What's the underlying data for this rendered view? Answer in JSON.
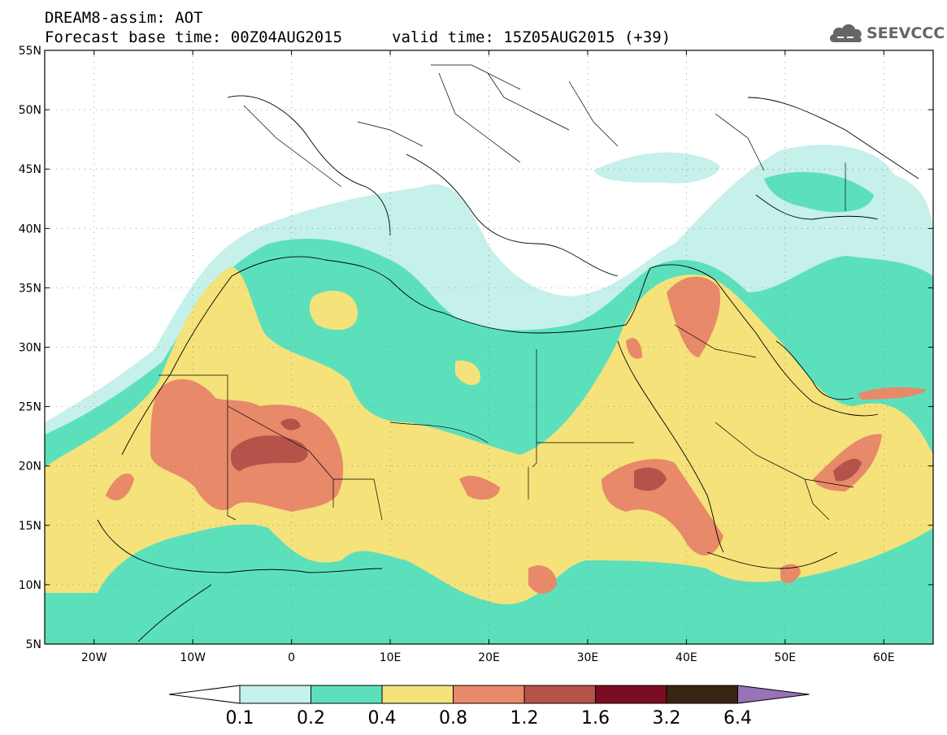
{
  "header": {
    "title": "DREAM8-assim: AOT",
    "base_time": "Forecast base time: 00Z04AUG2015",
    "valid_time": "valid time: 15Z05AUG2015 (+39)"
  },
  "logo": {
    "text": "SEEVCCC",
    "icon": "cloud-icon"
  },
  "map": {
    "lon_range": [
      -25,
      65
    ],
    "lat_range": [
      5,
      55
    ],
    "lat_ticks": [
      "55N",
      "50N",
      "45N",
      "40N",
      "35N",
      "30N",
      "25N",
      "20N",
      "15N",
      "10N",
      "5N"
    ],
    "lon_ticks": [
      "20W",
      "10W",
      "0",
      "10E",
      "20E",
      "30E",
      "40E",
      "50E",
      "60E"
    ]
  },
  "colorbar": {
    "labels": [
      "0.1",
      "0.2",
      "0.4",
      "0.8",
      "1.2",
      "1.6",
      "3.2",
      "6.4"
    ],
    "colors": [
      "#ffffff",
      "#c6f0ea",
      "#5ce0bc",
      "#f5e27a",
      "#e8896a",
      "#b5534a",
      "#7a0d22",
      "#3c2413",
      "#9a72b8"
    ]
  }
}
